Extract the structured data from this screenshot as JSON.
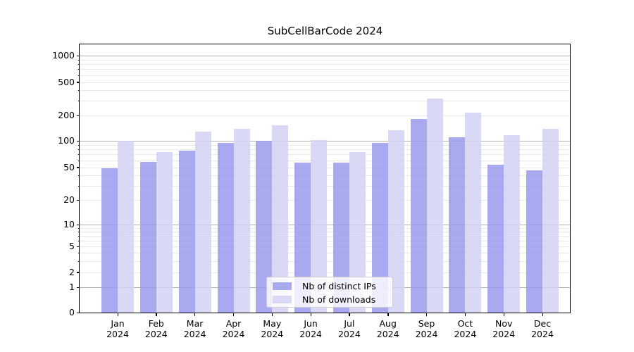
{
  "chart_data": {
    "type": "bar",
    "title": "SubCellBarCode 2024",
    "xlabel": "",
    "ylabel": "",
    "yscale": "symlog",
    "ylim": [
      0,
      1400
    ],
    "grid": true,
    "legend_position": "lower center",
    "yticks": [
      0,
      1,
      2,
      5,
      10,
      20,
      50,
      100,
      200,
      500,
      1000
    ],
    "categories": [
      "Jan",
      "Feb",
      "Mar",
      "Apr",
      "May",
      "Jun",
      "Jul",
      "Aug",
      "Sep",
      "Oct",
      "Nov",
      "Dec"
    ],
    "year_label": "2024",
    "series": [
      {
        "name": "Nb of distinct IPs",
        "color": "#a9a9f0",
        "values": [
          49,
          58,
          77,
          95,
          101,
          57,
          57,
          94,
          183,
          110,
          54,
          46
        ]
      },
      {
        "name": "Nb of downloads",
        "color": "#d9d9f6",
        "values": [
          101,
          74,
          128,
          139,
          154,
          102,
          74,
          135,
          318,
          218,
          117,
          139
        ]
      }
    ]
  }
}
